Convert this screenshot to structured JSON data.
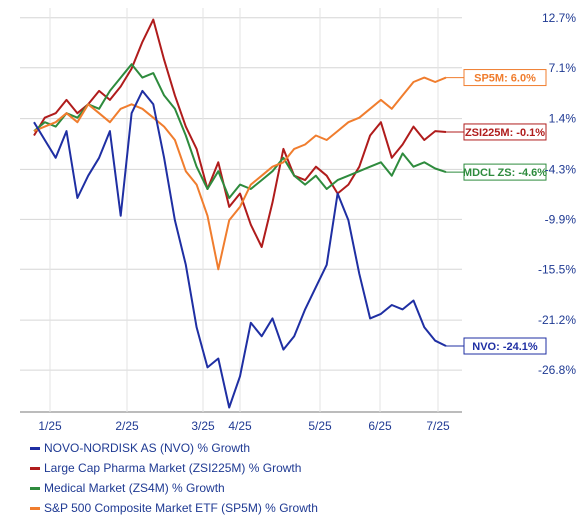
{
  "chart_data": {
    "type": "line",
    "x_labels": [
      "1/25",
      "2/25",
      "3/25",
      "4/25",
      "5/25",
      "6/25",
      "7/25"
    ],
    "y_ticks": [
      "12.7%",
      "7.1%",
      "1.4%",
      "-4.3%",
      "-9.9%",
      "-15.5%",
      "-21.2%",
      "-26.8%"
    ],
    "y_tick_values": [
      12.7,
      7.1,
      1.4,
      -4.3,
      -9.9,
      -15.5,
      -21.2,
      -26.8
    ],
    "ylim": [
      -31.5,
      13.8
    ],
    "grid": true,
    "series": [
      {
        "name": "Large Cap Pharma Market (ZSI225M) % Growth",
        "color": "#b01c1c",
        "end_label": "ZSI225M: -0.1%",
        "values": [
          -0.5,
          1.5,
          2.0,
          3.5,
          2.0,
          3.0,
          4.5,
          3.5,
          5.0,
          7.0,
          10.0,
          12.5,
          8.0,
          4.0,
          0.5,
          -2.0,
          -6.5,
          -3.5,
          -8.5,
          -7.0,
          -10.5,
          -13.0,
          -8.0,
          -2.0,
          -5.0,
          -5.5,
          -4.0,
          -5.0,
          -7.0,
          -6.0,
          -4.0,
          -0.5,
          1.0,
          -3.0,
          -1.5,
          0.5,
          -1.0,
          0.0,
          -0.1
        ]
      },
      {
        "name": "Medical Market (ZS4M) % Growth",
        "color": "#2e8b3d",
        "end_label": "MDCL ZS: -4.6%",
        "values": [
          0.0,
          1.0,
          0.5,
          2.0,
          1.5,
          3.0,
          2.5,
          4.5,
          6.0,
          7.5,
          6.0,
          6.5,
          4.0,
          2.5,
          -0.5,
          -4.0,
          -6.5,
          -4.5,
          -7.5,
          -6.0,
          -6.5,
          -5.5,
          -4.5,
          -3.0,
          -5.0,
          -6.0,
          -5.0,
          -6.5,
          -5.5,
          -5.0,
          -4.5,
          -4.0,
          -3.5,
          -5.0,
          -2.5,
          -4.0,
          -3.5,
          -4.2,
          -4.6
        ]
      },
      {
        "name": "S&P 500 Composite Market ETF (SP5M) % Growth",
        "color": "#f07d2e",
        "end_label": "SP5M: 6.0%",
        "values": [
          0.0,
          0.5,
          1.0,
          2.0,
          1.0,
          3.0,
          2.0,
          1.0,
          2.5,
          3.0,
          2.5,
          1.5,
          0.5,
          -1.0,
          -4.5,
          -6.0,
          -9.5,
          -15.5,
          -10.0,
          -8.5,
          -6.0,
          -5.0,
          -4.0,
          -3.5,
          -2.0,
          -1.5,
          -0.5,
          -1.0,
          0.0,
          1.0,
          1.5,
          2.5,
          3.5,
          2.5,
          4.0,
          5.5,
          6.0,
          5.5,
          6.0
        ]
      },
      {
        "name": "NOVO-NORDISK AS (NVO) % Growth",
        "color": "#1f2fa3",
        "end_label": "NVO: -24.1%",
        "values": [
          1.0,
          -1.0,
          -3.0,
          0.0,
          -7.5,
          -5.0,
          -3.0,
          0.0,
          -9.5,
          2.0,
          4.5,
          3.0,
          -3.0,
          -10.0,
          -15.0,
          -22.0,
          -26.5,
          -25.5,
          -31.0,
          -27.5,
          -21.5,
          -23.0,
          -21.0,
          -24.5,
          -23.0,
          -20.0,
          -17.5,
          -15.0,
          -7.0,
          -10.0,
          -16.0,
          -21.0,
          -20.5,
          -19.5,
          -20.0,
          -19.0,
          -22.0,
          -23.5,
          -24.1
        ]
      }
    ]
  }
}
